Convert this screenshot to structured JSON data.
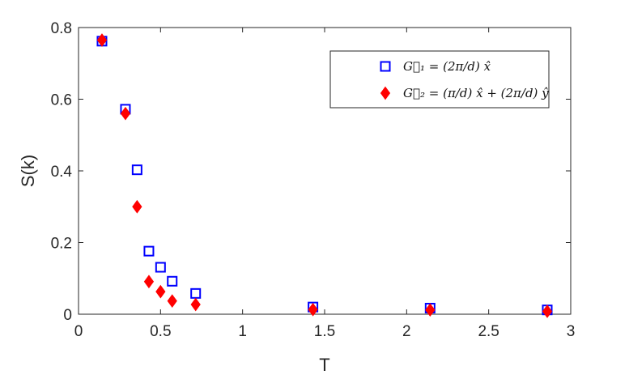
{
  "chart_data": {
    "type": "scatter",
    "xlabel": "T",
    "ylabel": "S(k)",
    "xlim": [
      0,
      3
    ],
    "ylim": [
      0,
      0.8
    ],
    "xticks": [
      "0",
      "0.5",
      "1",
      "1.5",
      "2",
      "2.5",
      "3"
    ],
    "yticks": [
      "0",
      "0.2",
      "0.4",
      "0.6",
      "0.8"
    ],
    "grid": false,
    "legend_position": "top-right",
    "series": [
      {
        "name": "G⃗₁ = (2π/d) x̂",
        "marker": "square",
        "color": "#0000ff",
        "x": [
          0.143,
          0.286,
          0.357,
          0.429,
          0.5,
          0.571,
          0.714,
          1.429,
          2.143,
          2.857
        ],
        "y": [
          0.762,
          0.572,
          0.403,
          0.176,
          0.131,
          0.092,
          0.058,
          0.02,
          0.017,
          0.012
        ]
      },
      {
        "name": "G⃗₂ = (π/d) x̂ + (2π/d) ŷ",
        "marker": "diamond",
        "color": "#ff0000",
        "x": [
          0.143,
          0.286,
          0.357,
          0.429,
          0.5,
          0.571,
          0.714,
          1.429,
          2.143,
          2.857
        ],
        "y": [
          0.765,
          0.56,
          0.3,
          0.091,
          0.063,
          0.037,
          0.027,
          0.013,
          0.012,
          0.008
        ]
      }
    ]
  }
}
